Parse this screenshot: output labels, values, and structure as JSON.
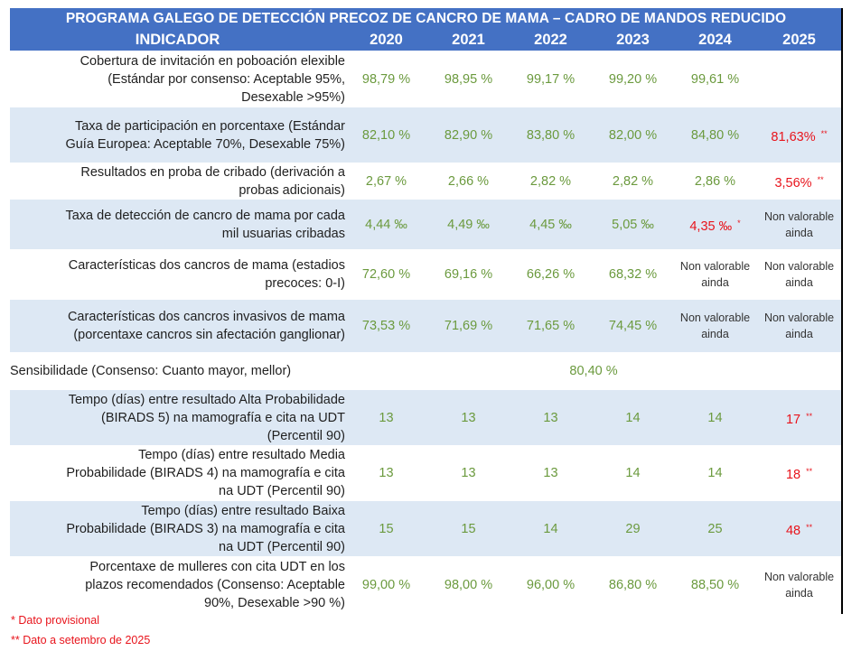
{
  "title": "PROGRAMA GALEGO DE DETECCIÓN PRECOZ DE CANCRO DE MAMA – CADRO DE MANDOS REDUCIDO",
  "header": {
    "indicator": "INDICADOR",
    "years": [
      "2020",
      "2021",
      "2022",
      "2023",
      "2024",
      "2025"
    ]
  },
  "rows": [
    {
      "label_lines": [
        "Cobertura de invitación en poboación elexible",
        "(Estándar por consenso: Aceptable 95%,",
        "Desexable >95%)"
      ],
      "values": [
        "98,79 %",
        "98,95 %",
        "99,17 %",
        "99,20 %",
        "99,61 %",
        ""
      ]
    },
    {
      "label_lines": [
        "Taxa de participación en porcentaxe (Estándar",
        "Guía Europea: Aceptable 70%, Desexable 75%)"
      ],
      "values": [
        "82,10 %",
        "82,90 %",
        "83,80 %",
        "82,00 %",
        "84,80 %",
        "81,63%"
      ],
      "marks": [
        "",
        "",
        "",
        "",
        "",
        "**"
      ]
    },
    {
      "label_lines": [
        "Resultados en proba de cribado (derivación a",
        "probas adicionais)"
      ],
      "values": [
        "2,67 %",
        "2,66 %",
        "2,82 %",
        "2,82 %",
        "2,86 %",
        "3,56%"
      ],
      "marks": [
        "",
        "",
        "",
        "",
        "",
        "**"
      ]
    },
    {
      "label_lines": [
        "Taxa de detección de cancro de mama por cada",
        "mil usuarias cribadas"
      ],
      "values": [
        "4,44 ‰",
        "4,49 ‰",
        "4,45 ‰",
        "5,05 ‰",
        "4,35 ‰",
        "Non valorable ainda"
      ],
      "marks": [
        "",
        "",
        "",
        "",
        "*",
        ""
      ]
    },
    {
      "label_lines": [
        "Características dos cancros de mama (estadios",
        "precoces: 0-I)"
      ],
      "values": [
        "72,60 %",
        "69,16 %",
        "66,26 %",
        "68,32 %",
        "Non valorable ainda",
        "Non valorable ainda"
      ]
    },
    {
      "label_lines": [
        "Características dos cancros invasivos de mama",
        "(porcentaxe cancros sin afectación ganglionar)"
      ],
      "values": [
        "73,53 %",
        "71,69 %",
        "71,65 %",
        "74,45 %",
        "Non valorable ainda",
        "Non valorable ainda"
      ]
    },
    {
      "label_lines": [
        "Sensibilidade (Consenso: Cuanto mayor, mellor)"
      ],
      "merged_value": "80,40 %"
    },
    {
      "label_lines": [
        "Tempo (días) entre resultado Alta Probabilidade",
        "(BIRADS 5) na mamografía e cita na UDT",
        "(Percentil 90)"
      ],
      "values": [
        "13",
        "13",
        "13",
        "14",
        "14",
        "17"
      ],
      "marks": [
        "",
        "",
        "",
        "",
        "",
        "**"
      ]
    },
    {
      "label_lines": [
        "Tempo (días) entre resultado Media",
        "Probabilidade (BIRADS 4) na mamografía e cita",
        "na UDT (Percentil 90)"
      ],
      "values": [
        "13",
        "13",
        "13",
        "14",
        "14",
        "18"
      ],
      "marks": [
        "",
        "",
        "",
        "",
        "",
        "**"
      ]
    },
    {
      "label_lines": [
        "Tempo (días) entre resultado Baixa",
        "Probabilidade (BIRADS 3) na mamografía e cita",
        "na UDT (Percentil 90)"
      ],
      "values": [
        "15",
        "15",
        "14",
        "29",
        "25",
        "48"
      ],
      "marks": [
        "",
        "",
        "",
        "",
        "",
        "**"
      ]
    },
    {
      "label_lines": [
        "Porcentaxe de mulleres con cita UDT en los",
        "plazos recomendados (Consenso: Aceptable",
        "90%, Desexable >90 %)"
      ],
      "values": [
        "99,00 %",
        "98,00 %",
        "96,00 %",
        "86,80 %",
        "88,50 %",
        "Non valorable ainda"
      ]
    }
  ],
  "footnotes": [
    "* Dato provisional",
    "** Dato a setembro de 2025"
  ],
  "colors": {
    "header_bg": "#4471c4",
    "shaded_row": "#dde8f4",
    "value_green": "#6b9a3e",
    "highlight_red": "#e8141c"
  }
}
